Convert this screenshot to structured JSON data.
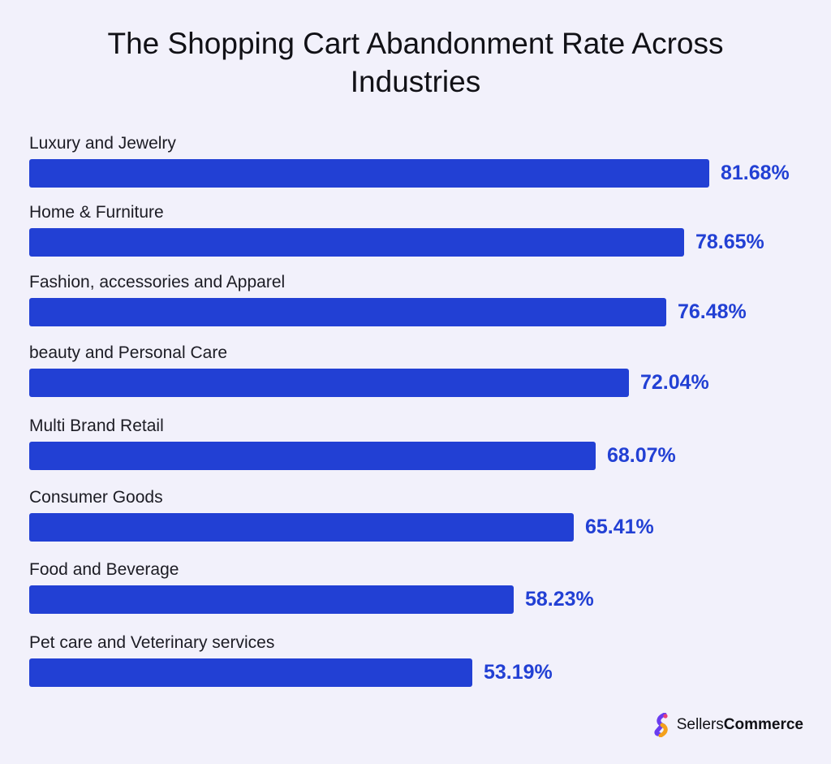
{
  "title_line1": "The Shopping Cart Abandonment Rate Across",
  "title_line2": "Industries",
  "colors": {
    "bar": "#2240d4",
    "value_text": "#2240d4",
    "background": "#f2f1fb"
  },
  "chart_data": {
    "type": "bar",
    "orientation": "horizontal",
    "title": "The Shopping Cart Abandonment Rate Across Industries",
    "categories": [
      "Luxury and Jewelry",
      "Home & Furniture",
      "Fashion, accessories and Apparel",
      "beauty and Personal Care",
      "Multi Brand Retail",
      "Consumer Goods",
      "Food and Beverage",
      "Pet care and Veterinary services"
    ],
    "values": [
      81.68,
      78.65,
      76.48,
      72.04,
      68.07,
      65.41,
      58.23,
      53.19
    ],
    "value_labels": [
      "81.68%",
      "78.65%",
      "76.48%",
      "72.04%",
      "68.07%",
      "65.41%",
      "58.23%",
      "53.19%"
    ],
    "unit": "%",
    "xlim": [
      0,
      100
    ],
    "grid": false,
    "legend": "none"
  },
  "brand": {
    "name_part1": "Sellers",
    "name_part2": "Commerce",
    "logo_icon": "sellerscommerce-logo-icon"
  }
}
